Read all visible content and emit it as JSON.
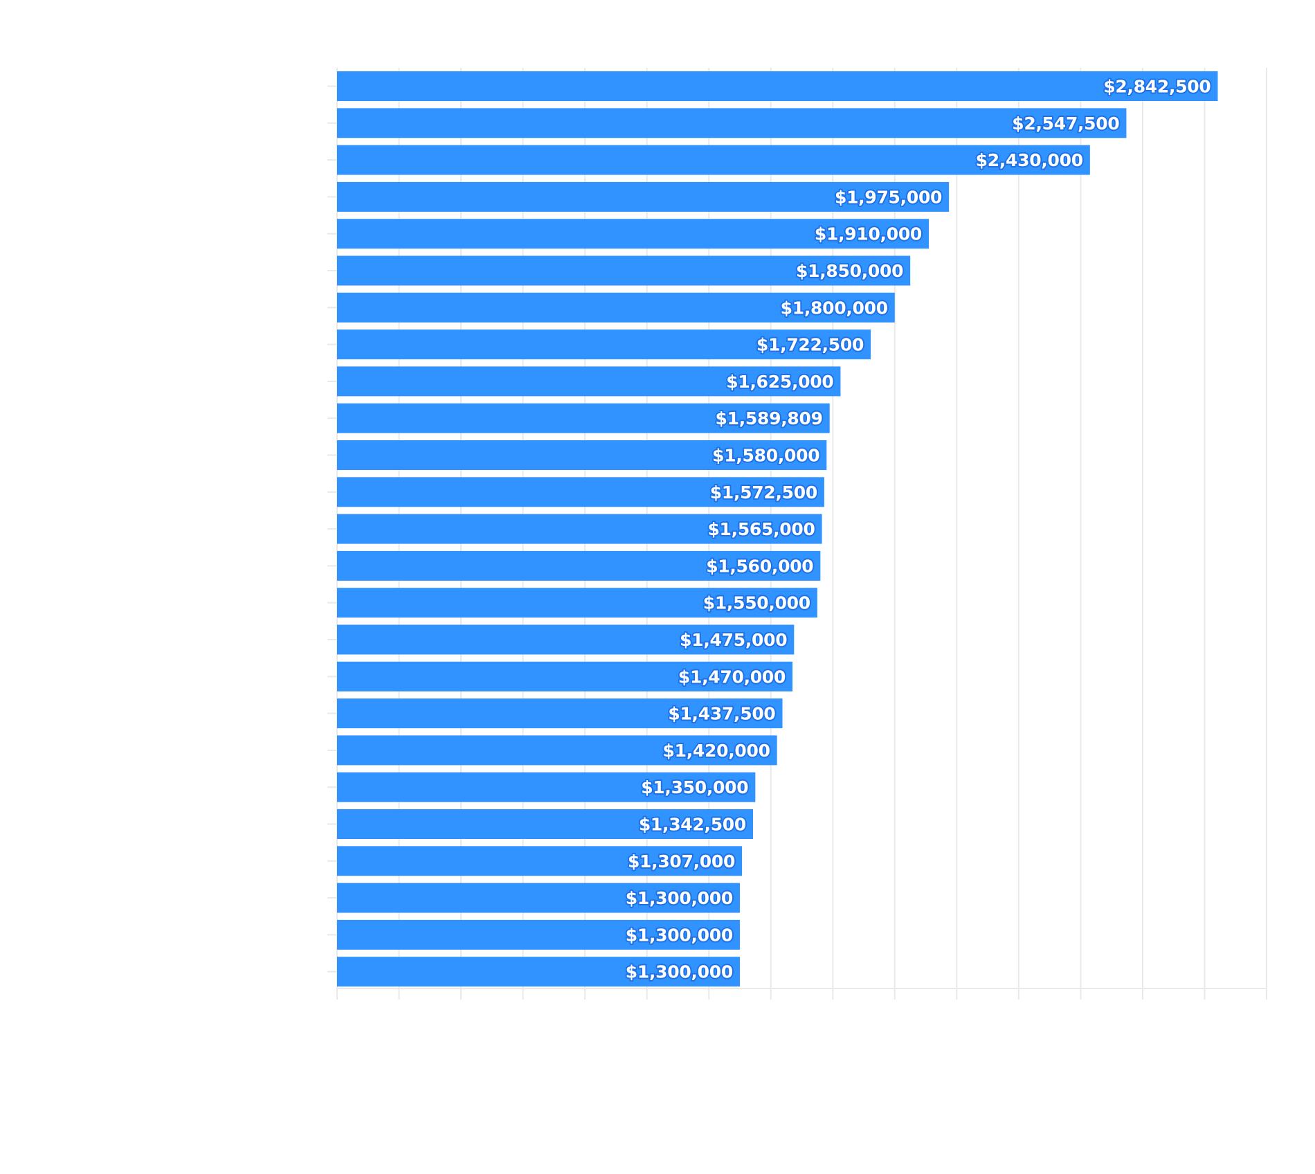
{
  "colors": {
    "bar": "#3093ff",
    "grid": "#e9e9e9",
    "label_fill": "#ffffff",
    "label_outline": "#1f72e6",
    "background": "#ffffff"
  },
  "chart_data": {
    "type": "bar",
    "orientation": "horizontal",
    "title": "",
    "xlabel": "",
    "ylabel": "",
    "grid": true,
    "legend": "none",
    "xlim": [
      0,
      3000000
    ],
    "x_gridline_step": 200000,
    "categories": [
      "",
      "",
      "",
      "",
      "",
      "",
      "",
      "",
      "",
      "",
      "",
      "",
      "",
      "",
      "",
      "",
      "",
      "",
      "",
      "",
      "",
      "",
      "",
      "",
      ""
    ],
    "values": [
      2842500,
      2547500,
      2430000,
      1975000,
      1910000,
      1850000,
      1800000,
      1722500,
      1625000,
      1589809,
      1580000,
      1572500,
      1565000,
      1560000,
      1550000,
      1475000,
      1470000,
      1437500,
      1420000,
      1350000,
      1342500,
      1307000,
      1300000,
      1300000,
      1300000
    ],
    "value_labels": [
      "$2,842,500",
      "$2,547,500",
      "$2,430,000",
      "$1,975,000",
      "$1,910,000",
      "$1,850,000",
      "$1,800,000",
      "$1,722,500",
      "$1,625,000",
      "$1,589,809",
      "$1,580,000",
      "$1,572,500",
      "$1,565,000",
      "$1,560,000",
      "$1,550,000",
      "$1,475,000",
      "$1,470,000",
      "$1,437,500",
      "$1,420,000",
      "$1,350,000",
      "$1,342,500",
      "$1,307,000",
      "$1,300,000",
      "$1,300,000",
      "$1,300,000"
    ]
  }
}
